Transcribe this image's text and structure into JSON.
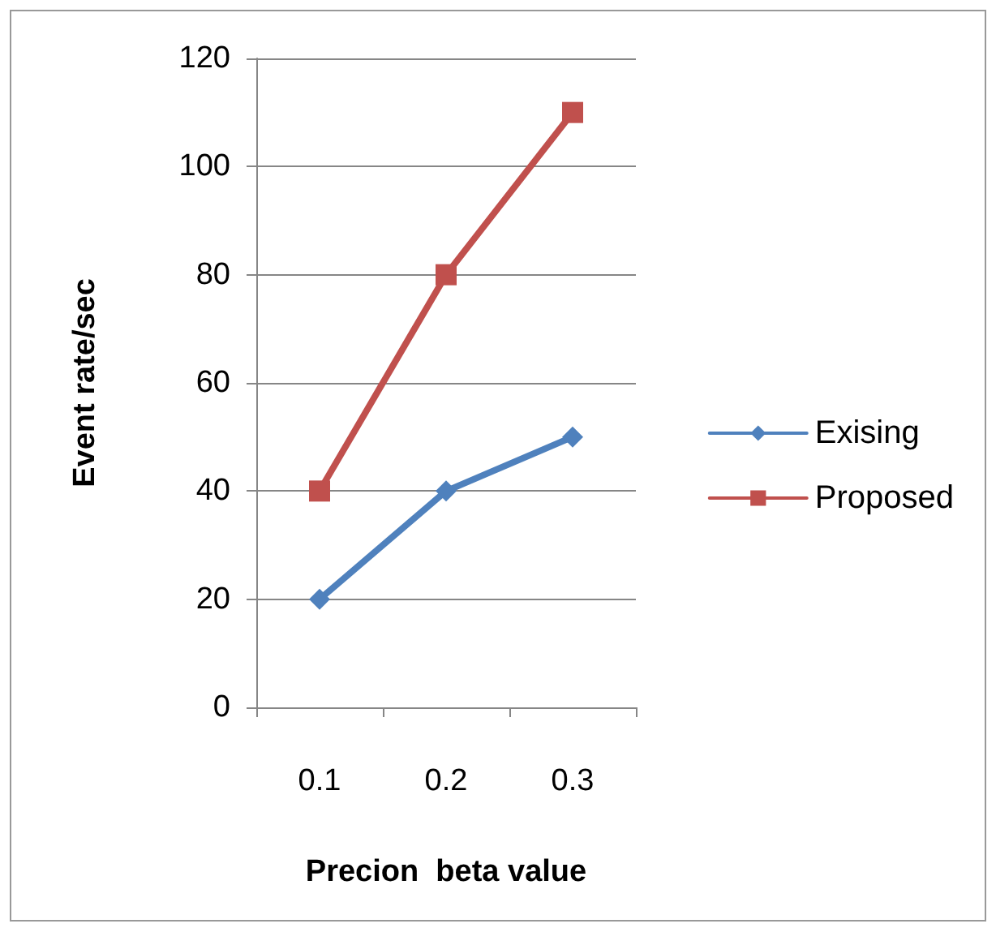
{
  "chart_data": {
    "type": "line",
    "xlabel": "Precion  beta value",
    "ylabel": "Event rate/sec",
    "categories": [
      "0.1",
      "0.2",
      "0.3"
    ],
    "series": [
      {
        "name": "Exising",
        "color": "#4f81bd",
        "marker": "diamond",
        "values": [
          20,
          40,
          50
        ]
      },
      {
        "name": "Proposed",
        "color": "#c0504d",
        "marker": "square",
        "values": [
          40,
          80,
          110
        ]
      }
    ],
    "ylim": [
      0,
      120
    ],
    "yticks": [
      0,
      20,
      40,
      60,
      80,
      100,
      120
    ],
    "grid": "y",
    "legend": "right",
    "line_style": "solid"
  }
}
